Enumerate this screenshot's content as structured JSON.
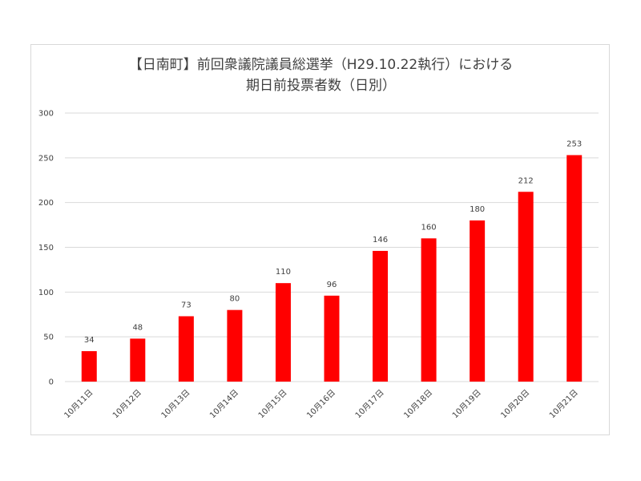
{
  "chart_data": {
    "type": "bar",
    "title_line1": "【日南町】前回衆議院議員総選挙（H29.10.22執行）における",
    "title_line2": "期日前投票者数（日別）",
    "categories": [
      "10月11日",
      "10月12日",
      "10月13日",
      "10月14日",
      "10月15日",
      "10月16日",
      "10月17日",
      "10月18日",
      "10月19日",
      "10月20日",
      "10月21日"
    ],
    "values": [
      34,
      48,
      73,
      80,
      110,
      96,
      146,
      160,
      180,
      212,
      253
    ],
    "ylim": [
      0,
      300
    ],
    "yticks": [
      "0",
      "50",
      "100",
      "150",
      "200",
      "250",
      "300"
    ],
    "grid": true,
    "legend": "none",
    "bar_color": "#ff0000",
    "grid_color": "#d9d9d9"
  }
}
